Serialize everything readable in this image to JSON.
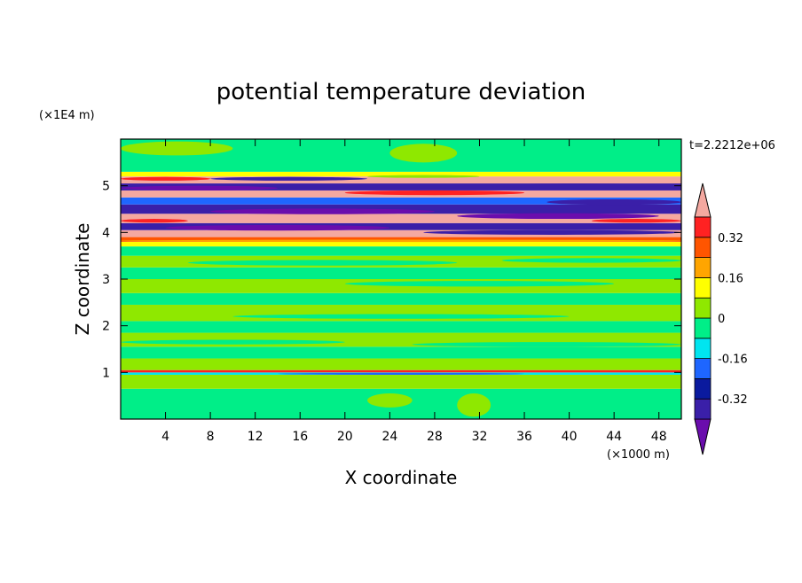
{
  "chart_data": {
    "type": "heatmap",
    "title": "potential temperature deviation",
    "xlabel": "X coordinate",
    "ylabel": "Z coordinate",
    "x_unit": "(×1000 m)",
    "y_unit": "(×1E4 m)",
    "time_label": "t=2.2212e+06",
    "xlim": [
      0,
      50
    ],
    "ylim": [
      0,
      6
    ],
    "x_ticks": [
      "4",
      "8",
      "12",
      "16",
      "20",
      "24",
      "28",
      "32",
      "36",
      "40",
      "44",
      "48"
    ],
    "x_tick_values": [
      4,
      8,
      12,
      16,
      20,
      24,
      28,
      32,
      36,
      40,
      44,
      48
    ],
    "y_ticks": [
      "1",
      "2",
      "3",
      "4",
      "5"
    ],
    "y_tick_values": [
      1,
      2,
      3,
      4,
      5
    ],
    "colorbar": {
      "levels": [
        -0.4,
        -0.32,
        -0.24,
        -0.16,
        -0.08,
        0,
        0.08,
        0.16,
        0.24,
        0.32,
        0.4
      ],
      "labels": [
        "-0.32",
        "-0.16",
        "0",
        "0.16",
        "0.32"
      ],
      "label_values": [
        -0.32,
        -0.16,
        0,
        0.16,
        0.32
      ],
      "colors": [
        "#6a0dad",
        "#3a1fa8",
        "#0a1a9e",
        "#1e66ff",
        "#00e5f0",
        "#00ee88",
        "#8fe800",
        "#ffff00",
        "#ffa500",
        "#ff5500",
        "#ff2222",
        "#f4a8a0"
      ],
      "extend": "both"
    },
    "bands": [
      {
        "y0": 0.0,
        "y1": 0.65,
        "color": "#00ee88"
      },
      {
        "y0": 0.65,
        "y1": 0.95,
        "color": "#8fe800"
      },
      {
        "y0": 0.95,
        "y1": 1.0,
        "color": "#00e5f0"
      },
      {
        "y0": 1.0,
        "y1": 1.05,
        "color": "#ff2222"
      },
      {
        "y0": 1.05,
        "y1": 1.3,
        "color": "#8fe800"
      },
      {
        "y0": 1.3,
        "y1": 1.55,
        "color": "#00ee88"
      },
      {
        "y0": 1.55,
        "y1": 1.85,
        "color": "#8fe800"
      },
      {
        "y0": 1.85,
        "y1": 2.1,
        "color": "#00ee88"
      },
      {
        "y0": 2.1,
        "y1": 2.45,
        "color": "#8fe800"
      },
      {
        "y0": 2.45,
        "y1": 2.7,
        "color": "#00ee88"
      },
      {
        "y0": 2.7,
        "y1": 3.0,
        "color": "#8fe800"
      },
      {
        "y0": 3.0,
        "y1": 3.25,
        "color": "#00ee88"
      },
      {
        "y0": 3.25,
        "y1": 3.5,
        "color": "#8fe800"
      },
      {
        "y0": 3.5,
        "y1": 3.7,
        "color": "#00ee88"
      },
      {
        "y0": 3.7,
        "y1": 3.8,
        "color": "#ffff00"
      },
      {
        "y0": 3.8,
        "y1": 3.9,
        "color": "#ff5500"
      },
      {
        "y0": 3.9,
        "y1": 4.05,
        "color": "#f4a8a0"
      },
      {
        "y0": 4.05,
        "y1": 4.2,
        "color": "#3a1fa8"
      },
      {
        "y0": 4.2,
        "y1": 4.4,
        "color": "#f4a8a0"
      },
      {
        "y0": 4.4,
        "y1": 4.6,
        "color": "#3a1fa8"
      },
      {
        "y0": 4.6,
        "y1": 4.75,
        "color": "#1e66ff"
      },
      {
        "y0": 4.75,
        "y1": 4.9,
        "color": "#f4a8a0"
      },
      {
        "y0": 4.9,
        "y1": 5.05,
        "color": "#3a1fa8"
      },
      {
        "y0": 5.05,
        "y1": 5.2,
        "color": "#f4a8a0"
      },
      {
        "y0": 5.2,
        "y1": 5.3,
        "color": "#ffff00"
      },
      {
        "y0": 5.3,
        "y1": 6.0,
        "color": "#00ee88"
      }
    ],
    "streaks": [
      {
        "x0": 4,
        "x1": 24,
        "y": 4.1,
        "h": 0.12,
        "color": "#6a0dad"
      },
      {
        "x0": 27,
        "x1": 50,
        "y": 4.0,
        "h": 0.1,
        "color": "#3a1fa8"
      },
      {
        "x0": 8,
        "x1": 28,
        "y": 4.45,
        "h": 0.12,
        "color": "#6a0dad"
      },
      {
        "x0": 30,
        "x1": 48,
        "y": 4.35,
        "h": 0.12,
        "color": "#6a0dad"
      },
      {
        "x0": 0,
        "x1": 14,
        "y": 4.95,
        "h": 0.1,
        "color": "#6a0dad"
      },
      {
        "x0": 20,
        "x1": 36,
        "y": 4.85,
        "h": 0.1,
        "color": "#ff2222"
      },
      {
        "x0": 38,
        "x1": 50,
        "y": 4.65,
        "h": 0.12,
        "color": "#3a1fa8"
      },
      {
        "x0": 8,
        "x1": 22,
        "y": 5.15,
        "h": 0.08,
        "color": "#3a1fa8"
      },
      {
        "x0": 33,
        "x1": 48,
        "y": 5.0,
        "h": 0.1,
        "color": "#3a1fa8"
      },
      {
        "x0": 0,
        "x1": 8,
        "y": 5.15,
        "h": 0.08,
        "color": "#ff2222"
      },
      {
        "x0": 22,
        "x1": 32,
        "y": 5.2,
        "h": 0.06,
        "color": "#8fe800"
      },
      {
        "x0": 0,
        "x1": 50,
        "y": 3.82,
        "h": 0.05,
        "color": "#ffa500"
      },
      {
        "x0": 0,
        "x1": 6,
        "y": 4.25,
        "h": 0.08,
        "color": "#ff2222"
      },
      {
        "x0": 42,
        "x1": 50,
        "y": 4.25,
        "h": 0.08,
        "color": "#ff2222"
      },
      {
        "x0": 14,
        "x1": 36,
        "y": 0.97,
        "h": 0.04,
        "color": "#1e66ff"
      },
      {
        "x0": 22,
        "x1": 26,
        "y": 0.4,
        "h": 0.3,
        "color": "#8fe800"
      },
      {
        "x0": 30,
        "x1": 33,
        "y": 0.3,
        "h": 0.5,
        "color": "#8fe800"
      },
      {
        "x0": 34,
        "x1": 38,
        "y": 0.2,
        "h": 0.3,
        "color": "#00ee88"
      },
      {
        "x0": 2,
        "x1": 16,
        "y": 2.6,
        "h": 0.12,
        "color": "#00ee88"
      },
      {
        "x0": 20,
        "x1": 44,
        "y": 2.9,
        "h": 0.12,
        "color": "#00ee88"
      },
      {
        "x0": 6,
        "x1": 30,
        "y": 3.35,
        "h": 0.12,
        "color": "#00ee88"
      },
      {
        "x0": 34,
        "x1": 50,
        "y": 3.4,
        "h": 0.1,
        "color": "#00ee88"
      },
      {
        "x0": 10,
        "x1": 40,
        "y": 2.2,
        "h": 0.1,
        "color": "#00ee88"
      },
      {
        "x0": 0,
        "x1": 20,
        "y": 1.65,
        "h": 0.1,
        "color": "#00ee88"
      },
      {
        "x0": 26,
        "x1": 50,
        "y": 1.6,
        "h": 0.1,
        "color": "#00ee88"
      },
      {
        "x0": 24,
        "x1": 30,
        "y": 5.7,
        "h": 0.4,
        "color": "#8fe800"
      },
      {
        "x0": 0,
        "x1": 10,
        "y": 5.8,
        "h": 0.3,
        "color": "#8fe800"
      }
    ]
  }
}
